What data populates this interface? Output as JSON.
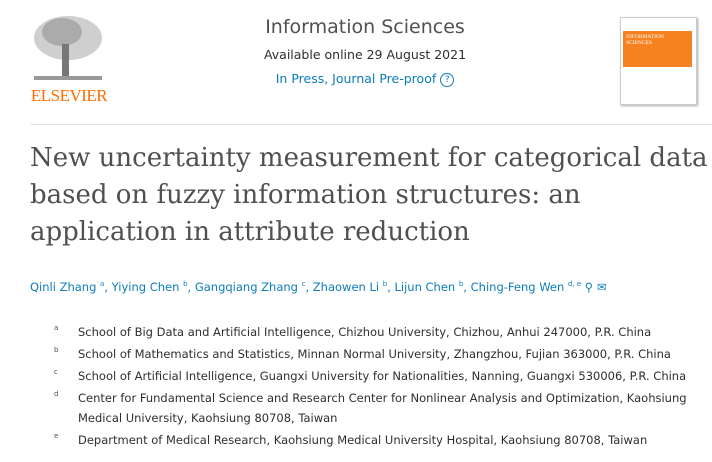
{
  "publisher": {
    "name": "ELSEVIER"
  },
  "journal": {
    "title": "Information Sciences",
    "available": "Available online 29 August 2021",
    "status": "In Press, Journal Pre-proof",
    "help_icon": "?",
    "cover_title": "INFORMATION SCIENCES"
  },
  "article": {
    "title": "New uncertainty measurement for categorical data based on fuzzy information structures: an application in attribute reduction"
  },
  "authors": [
    {
      "name": "Qinli Zhang",
      "aff": "a"
    },
    {
      "name": "Yiying Chen",
      "aff": "b"
    },
    {
      "name": "Gangqiang Zhang",
      "aff": "c"
    },
    {
      "name": "Zhaowen Li",
      "aff": "b"
    },
    {
      "name": "Lijun Chen",
      "aff": "b"
    },
    {
      "name": "Ching-Feng Wen",
      "aff": "d, e"
    }
  ],
  "affiliations": [
    {
      "label": "a",
      "text": "School of Big Data and Artificial Intelligence, Chizhou University, Chizhou, Anhui 247000, P.R. China"
    },
    {
      "label": "b",
      "text": "School of Mathematics and Statistics, Minnan Normal University, Zhangzhou, Fujian 363000, P.R. China"
    },
    {
      "label": "c",
      "text": "School of Artificial Intelligence, Guangxi University for Nationalities, Nanning, Guangxi 530006, P.R. China"
    },
    {
      "label": "d",
      "text": "Center for Fundamental Science and Research Center for Nonlinear Analysis and Optimization, Kaohsiung Medical University, Kaohsiung 80708, Taiwan"
    },
    {
      "label": "e",
      "text": "Department of Medical Research, Kaohsiung Medical University Hospital, Kaohsiung 80708, Taiwan"
    }
  ]
}
